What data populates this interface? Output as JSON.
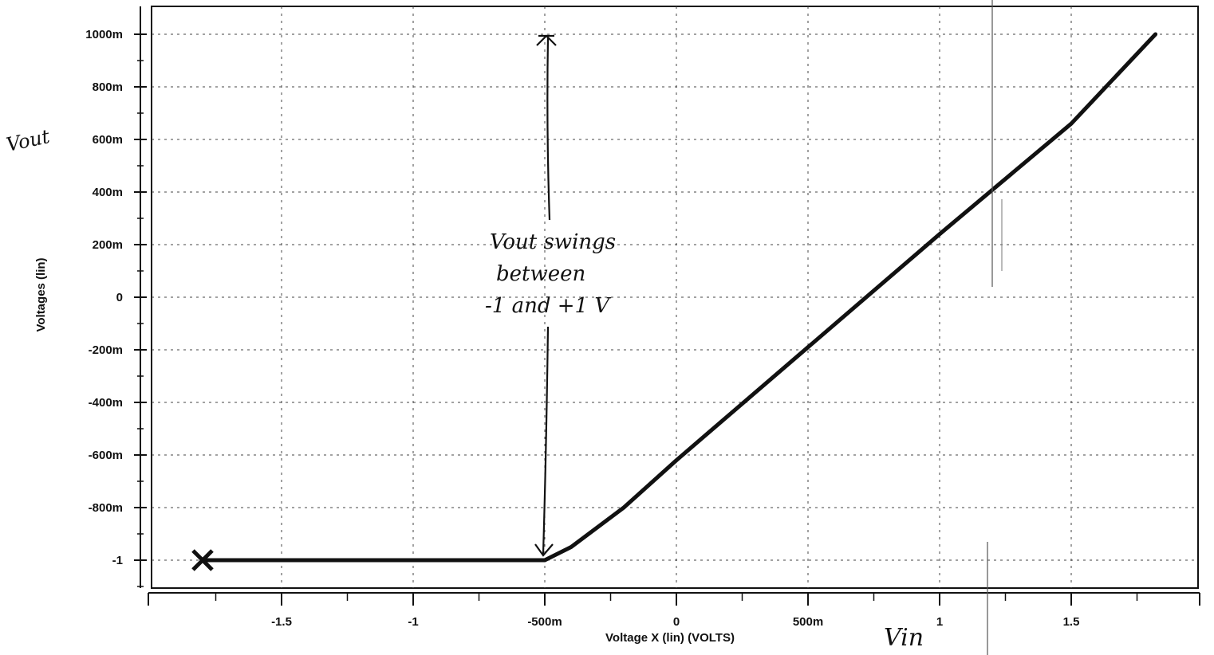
{
  "chart_data": {
    "type": "line",
    "title": "",
    "xlabel": "Voltage X (lin) (VOLTS)",
    "ylabel": "Voltages (lin)",
    "xlim": [
      -2.0,
      2.0
    ],
    "ylim": [
      -1.1,
      1.0
    ],
    "grid": true,
    "x_ticks": [
      {
        "value": -1.5,
        "label": "-1.5"
      },
      {
        "value": -1.0,
        "label": "-1"
      },
      {
        "value": -0.5,
        "label": "-500m"
      },
      {
        "value": 0.0,
        "label": "0"
      },
      {
        "value": 0.5,
        "label": "500m"
      },
      {
        "value": 1.0,
        "label": "1"
      },
      {
        "value": 1.5,
        "label": "1.5"
      }
    ],
    "y_ticks": [
      {
        "value": 1.0,
        "label": "1000m"
      },
      {
        "value": 0.8,
        "label": "800m"
      },
      {
        "value": 0.6,
        "label": "600m"
      },
      {
        "value": 0.4,
        "label": "400m"
      },
      {
        "value": 0.2,
        "label": "200m"
      },
      {
        "value": 0.0,
        "label": "0"
      },
      {
        "value": -0.2,
        "label": "-200m"
      },
      {
        "value": -0.4,
        "label": "-400m"
      },
      {
        "value": -0.6,
        "label": "-600m"
      },
      {
        "value": -0.8,
        "label": "-800m"
      },
      {
        "value": -1.0,
        "label": "-1"
      }
    ],
    "series": [
      {
        "x": [
          -1.8,
          -0.5,
          -0.4,
          -0.2,
          0.0,
          0.5,
          1.0,
          1.5,
          1.82
        ],
        "y": [
          -1.0,
          -1.0,
          -0.95,
          -0.8,
          -0.62,
          -0.19,
          0.24,
          0.66,
          1.0
        ]
      }
    ],
    "annotations": {
      "vout_label": "Vout",
      "vin_label": "Vin",
      "swing_note": [
        "Vout swings",
        "between",
        "-1 and +1 V"
      ],
      "start_marker": {
        "x": -1.8,
        "y": -1.0,
        "symbol": "x"
      },
      "swing_arrow": {
        "x": -0.5,
        "y_from": -1.0,
        "y_to": 1.0
      }
    }
  }
}
